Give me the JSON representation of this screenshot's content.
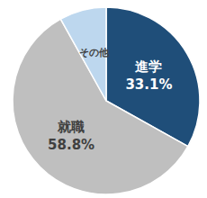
{
  "chart_data": {
    "type": "pie",
    "categories": [
      "進学",
      "就職",
      "その他"
    ],
    "values": [
      33.1,
      58.8,
      8.1
    ],
    "value_labels": [
      "33.1%",
      "58.8%",
      null
    ],
    "colors": [
      "#1f4e79",
      "#bfbfbf",
      "#bdd7ee"
    ],
    "data_labels": true
  }
}
